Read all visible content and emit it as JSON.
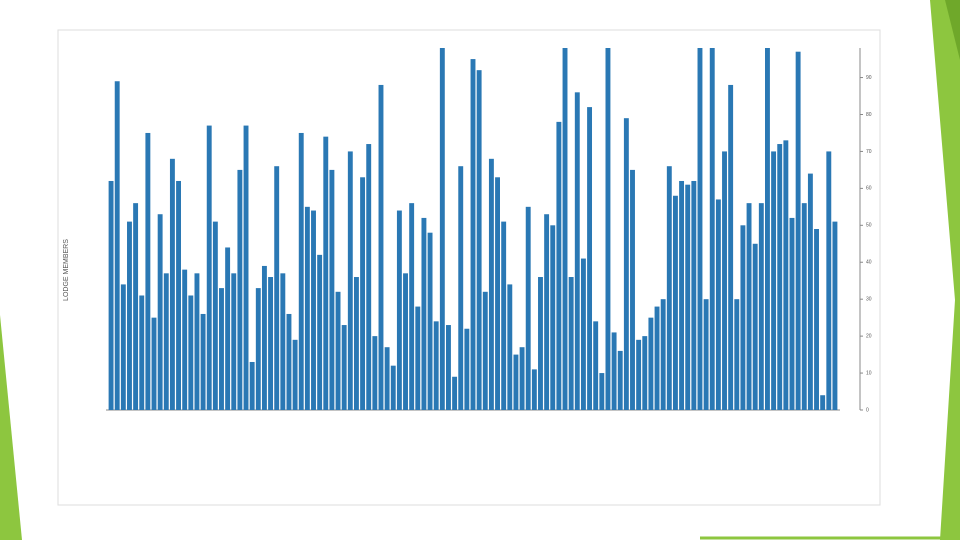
{
  "chart_data": {
    "type": "bar",
    "y_label": "LODGE MEMBERS",
    "color": "#2a78b4",
    "y_axis_side": "right",
    "categories": [
      null,
      null,
      null,
      null,
      null,
      null,
      null,
      null,
      null,
      null,
      null,
      null,
      null,
      null,
      null,
      null,
      null,
      null,
      null,
      null,
      null,
      null,
      null,
      null,
      null,
      null,
      null,
      null,
      null,
      null,
      null,
      null,
      null,
      null,
      null,
      null,
      null,
      null,
      null,
      null,
      null,
      null,
      null,
      null,
      null,
      null,
      null,
      null,
      null,
      null,
      null,
      null,
      null,
      null,
      null,
      null,
      null,
      null,
      null,
      null,
      null,
      null,
      null,
      null,
      null,
      null,
      null,
      null,
      null,
      null,
      null,
      null,
      null,
      null,
      null,
      null,
      null,
      null,
      null,
      null,
      null,
      null,
      null,
      null,
      null,
      null,
      null,
      null,
      null,
      null,
      null,
      null,
      null,
      null,
      null,
      null,
      null,
      null,
      null,
      null,
      null,
      null,
      null,
      null,
      null,
      null,
      null,
      null,
      null,
      null,
      null,
      null,
      null,
      null,
      null,
      null,
      null,
      null,
      null
    ],
    "values": [
      62,
      89,
      34,
      51,
      56,
      31,
      75,
      25,
      53,
      37,
      68,
      62,
      38,
      31,
      37,
      26,
      77,
      51,
      33,
      44,
      37,
      65,
      77,
      13,
      33,
      39,
      36,
      66,
      37,
      26,
      19,
      75,
      55,
      54,
      42,
      74,
      65,
      32,
      23,
      70,
      36,
      63,
      72,
      20,
      88,
      17,
      12,
      54,
      37,
      56,
      28,
      52,
      48,
      24,
      98,
      23,
      9,
      66,
      22,
      95,
      92,
      32,
      68,
      63,
      51,
      34,
      15,
      17,
      55,
      11,
      36,
      53,
      50,
      78,
      98,
      36,
      86,
      41,
      82,
      24,
      10,
      98,
      21,
      16,
      79,
      65,
      19,
      20,
      25,
      28,
      30,
      66,
      58,
      62,
      61,
      62,
      98,
      30,
      98,
      57,
      70,
      88,
      30,
      50,
      56,
      45,
      56,
      98,
      70,
      72,
      73,
      52,
      97,
      56,
      64,
      49,
      4,
      70,
      51
    ],
    "ylim": [
      0,
      98
    ],
    "yticks": [
      0,
      10,
      20,
      30,
      40,
      50,
      60,
      70,
      80,
      90
    ]
  }
}
